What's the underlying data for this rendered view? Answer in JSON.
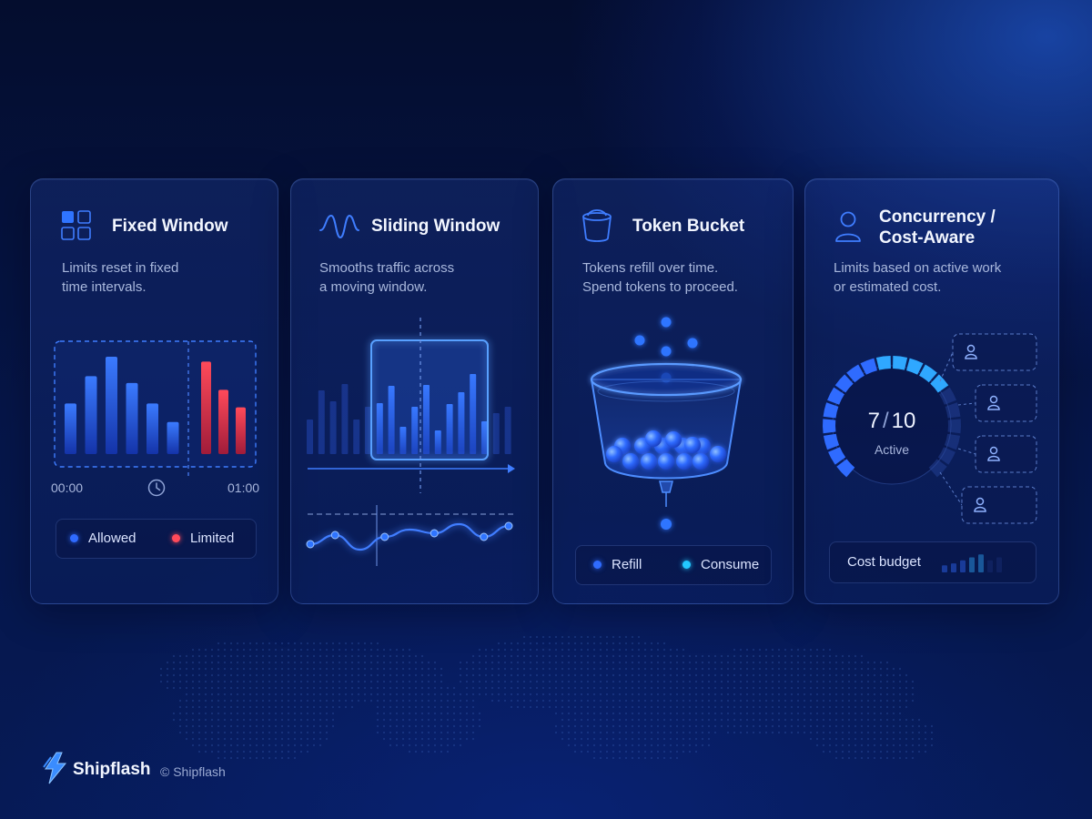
{
  "cards": [
    {
      "title": "Fixed Window",
      "icon": "grid-icon",
      "desc": [
        "Limits reset in fixed",
        "time intervals."
      ],
      "time_start": "00:00",
      "time_end": "01:00",
      "time_icon": "clock-icon",
      "allowed_bars": [
        0.52,
        0.8,
        1.0,
        0.73,
        0.52,
        0.33
      ],
      "limited_bars": [
        0.95,
        0.66,
        0.48
      ],
      "legend": [
        {
          "label": "Allowed",
          "color": "#2f6bff"
        },
        {
          "label": "Limited",
          "color": "#ff4a5a"
        }
      ]
    },
    {
      "title": "Sliding Window",
      "icon": "wave-icon",
      "desc": [
        "Smooths traffic across",
        "a moving window."
      ],
      "bars": [
        0.38,
        0.7,
        0.58,
        0.77,
        0.38,
        0.52,
        0.56,
        0.75,
        0.3,
        0.52,
        0.76,
        0.26,
        0.55,
        0.68,
        0.88,
        0.36,
        0.45,
        0.52
      ],
      "line": [
        0.35,
        0.6,
        0.2,
        0.55,
        0.75,
        0.65,
        0.9,
        0.55,
        0.85
      ]
    },
    {
      "title": "Token Bucket",
      "icon": "bucket-icon",
      "desc": [
        "Tokens refill over time.",
        "Spend tokens to proceed."
      ],
      "legend": [
        {
          "label": "Refill",
          "color": "#2f6bff"
        },
        {
          "label": "Consume",
          "color": "#22c8ff"
        }
      ]
    },
    {
      "title": [
        "Concurrency /",
        "Cost-Aware"
      ],
      "icon": "user-icon",
      "desc": [
        "Limits based on active work",
        "or estimated cost."
      ],
      "gauge": {
        "value": "7",
        "max": "10",
        "separator": "/",
        "label": "Active",
        "fraction": 0.7
      },
      "slots": 4,
      "slot_icon": "user-icon",
      "budget_label": "Cost budget",
      "budget_bars": [
        0.35,
        0.45,
        0.6,
        0.75,
        0.9,
        0.6,
        0.75
      ],
      "budget_active": 5
    }
  ],
  "footer": {
    "brand": "Shipflash",
    "copyright": "© Shipflash",
    "logo": "lightning-logo-icon"
  },
  "colors": {
    "accent": "#2f6bff",
    "cyan": "#22c8ff",
    "limited": "#ff4a5a",
    "background": "#06164a"
  }
}
